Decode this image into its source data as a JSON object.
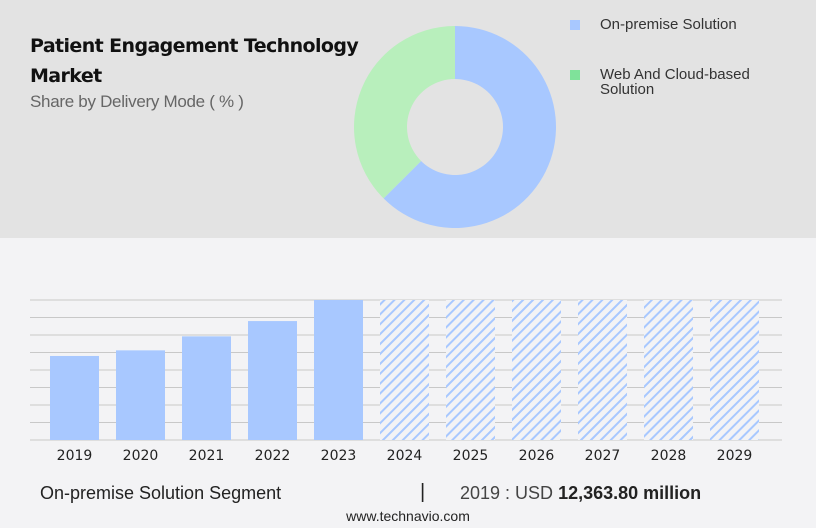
{
  "header": {
    "title": "Patient Engagement Technology Market",
    "subtitle": "Share by Delivery Mode ( % )"
  },
  "chart_data": [
    {
      "type": "pie",
      "variant": "donut",
      "title": "Patient Engagement Technology Market",
      "subtitle": "Share by Delivery Mode ( % )",
      "slices": [
        {
          "name": "On-premise Solution",
          "value": 62.5,
          "color": "#a8c8ff"
        },
        {
          "name": "Web And Cloud-based Solution",
          "value": 37.5,
          "color": "#b8efbc"
        }
      ],
      "legend_colors": [
        "#a8c8ff",
        "#7fe29a"
      ],
      "legend": "right"
    },
    {
      "type": "bar",
      "categories": [
        "2019",
        "2020",
        "2021",
        "2022",
        "2023",
        "2024",
        "2025",
        "2026",
        "2027",
        "2028",
        "2029"
      ],
      "values": [
        12363.8,
        13190,
        15250,
        17500,
        20600,
        null,
        null,
        null,
        null,
        null,
        null
      ],
      "forecast": [
        false,
        false,
        false,
        false,
        false,
        true,
        true,
        true,
        true,
        true,
        true
      ],
      "unit": "USD million",
      "ylim": [
        0,
        20600
      ],
      "grid": true,
      "color": "#a8c8ff"
    }
  ],
  "footer": {
    "segment": "On-premise Solution Segment",
    "separator": "|",
    "year_label": "2019 : USD",
    "value": "12,363.80 million",
    "url": "www.technavio.com"
  }
}
